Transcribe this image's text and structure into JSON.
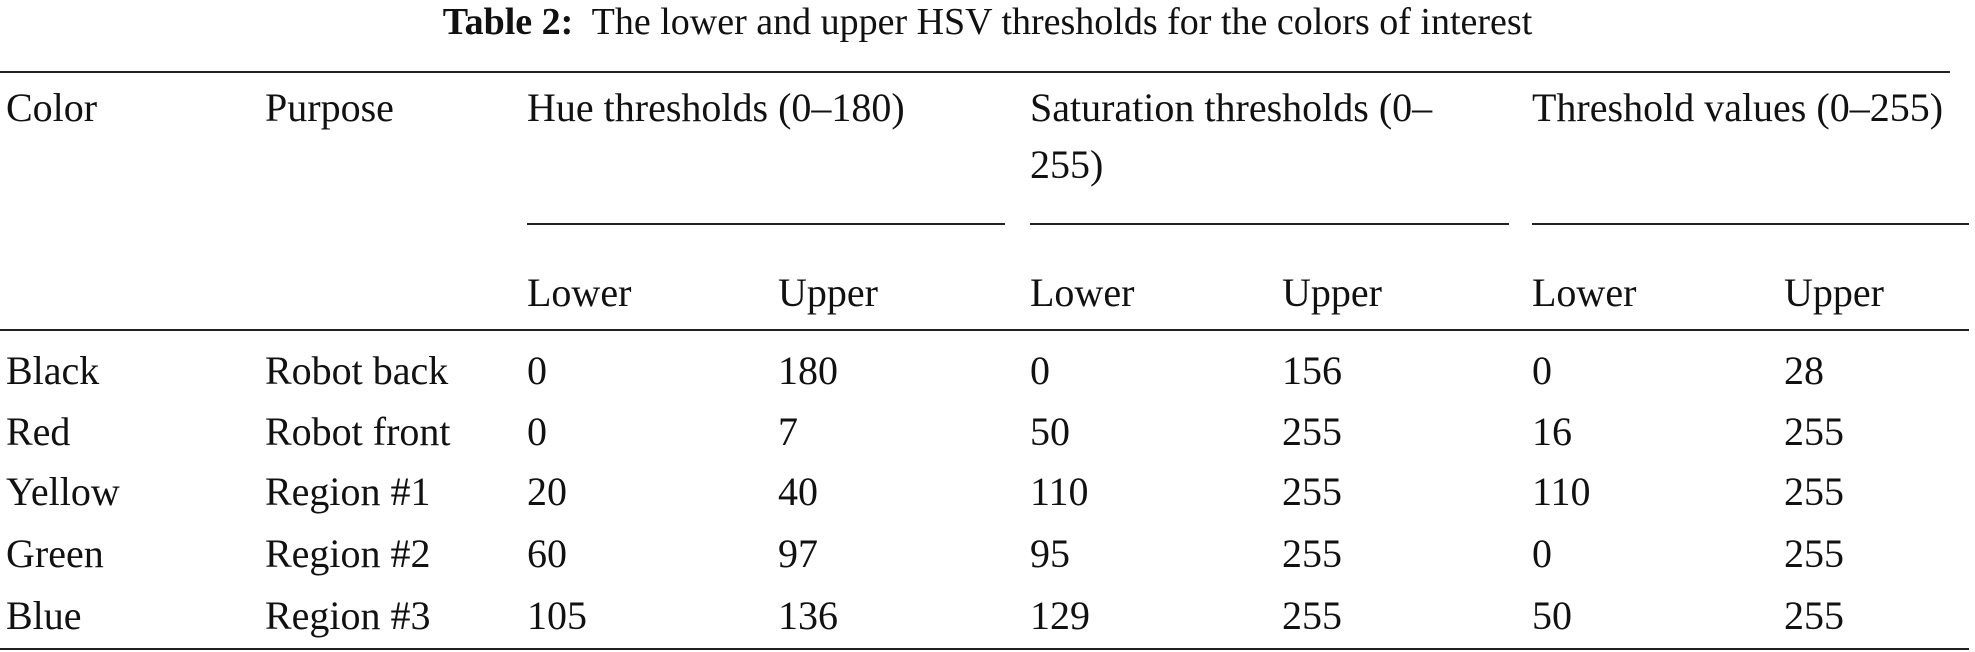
{
  "caption": {
    "label": "Table 2:",
    "text": "The lower and upper HSV thresholds for the colors of interest"
  },
  "table": {
    "header": {
      "color": "Color",
      "purpose": "Purpose",
      "groups": [
        "Hue thresholds (0–180)",
        "Saturation thresholds (0–255)",
        "Threshold values (0–255)"
      ],
      "subheaders": [
        "Lower",
        "Upper",
        "Lower",
        "Upper",
        "Lower",
        "Upper"
      ]
    },
    "rows": [
      [
        "Black",
        "Robot back",
        0,
        180,
        0,
        156,
        0,
        28
      ],
      [
        "Red",
        "Robot front",
        0,
        7,
        50,
        255,
        16,
        255
      ],
      [
        "Yellow",
        "Region #1",
        20,
        40,
        110,
        255,
        110,
        255
      ],
      [
        "Green",
        "Region #2",
        60,
        97,
        95,
        255,
        0,
        255
      ],
      [
        "Blue",
        "Region #3",
        105,
        136,
        129,
        255,
        50,
        255
      ]
    ]
  }
}
